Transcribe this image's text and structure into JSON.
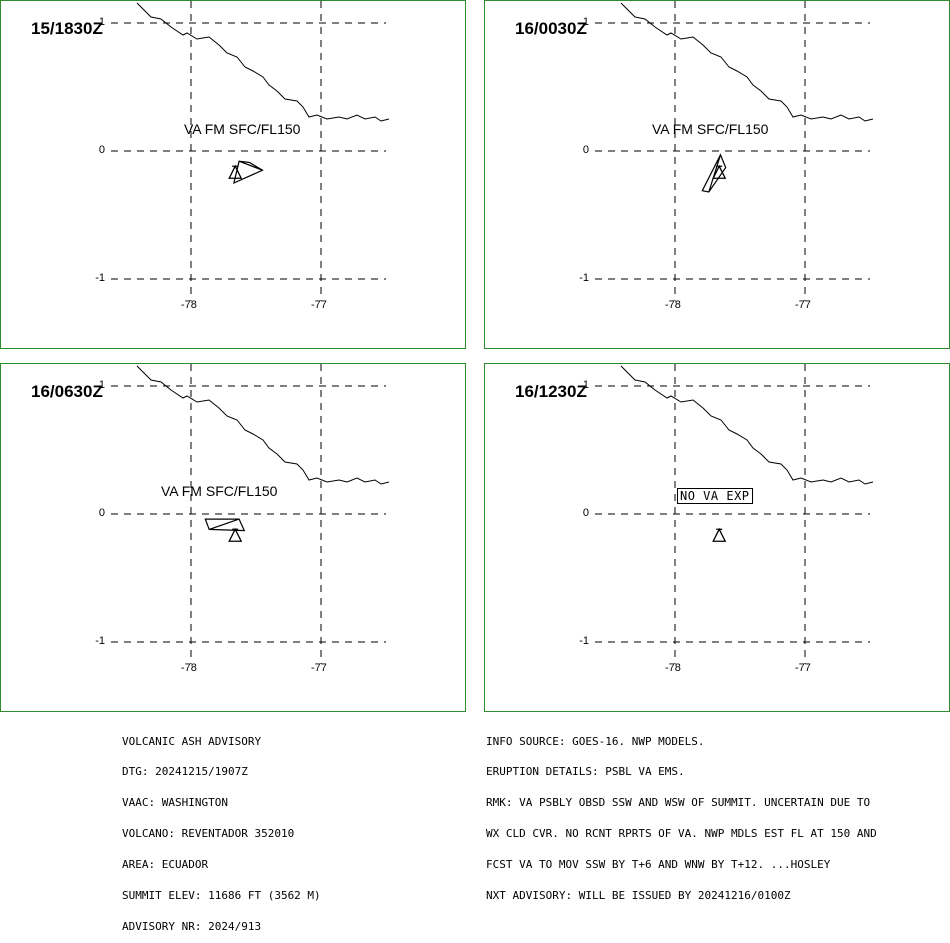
{
  "panels": [
    {
      "time": "15/1830Z",
      "label": "VA FM SFC/FL150",
      "label_boxed": false,
      "plume": [
        [
          -77.63,
          -0.08
        ],
        [
          -77.55,
          -0.09
        ],
        [
          -77.45,
          -0.15
        ],
        [
          -77.67,
          -0.25
        ]
      ]
    },
    {
      "time": "16/0030Z",
      "label": "VA FM SFC/FL150",
      "label_boxed": false,
      "plume": [
        [
          -77.65,
          -0.03
        ],
        [
          -77.61,
          -0.13
        ],
        [
          -77.74,
          -0.32
        ],
        [
          -77.79,
          -0.31
        ]
      ]
    },
    {
      "time": "16/0630Z",
      "label": "VA FM SFC/FL150",
      "label_boxed": false,
      "plume": [
        [
          -77.63,
          -0.04
        ],
        [
          -77.59,
          -0.13
        ],
        [
          -77.86,
          -0.12
        ],
        [
          -77.89,
          -0.04
        ]
      ]
    },
    {
      "time": "16/1230Z",
      "label": "NO VA EXP",
      "label_boxed": true,
      "plume": []
    }
  ],
  "axes": {
    "x_ticks": [
      "-78",
      "-77"
    ],
    "y_ticks": [
      "1",
      "0",
      "-1"
    ]
  },
  "volcano": {
    "name": "REVENTADOR",
    "lon": -77.66,
    "lat": -0.08
  },
  "advisory_left": [
    "VOLCANIC ASH ADVISORY",
    "DTG: 20241215/1907Z",
    "VAAC: WASHINGTON",
    "VOLCANO: REVENTADOR 352010",
    "AREA: ECUADOR",
    "SUMMIT ELEV: 11686 FT (3562 M)",
    "ADVISORY NR: 2024/913"
  ],
  "advisory_right": [
    "INFO SOURCE: GOES-16. NWP MODELS.",
    "ERUPTION DETAILS: PSBL VA EMS.",
    "RMK: VA PSBLY OBSD SSW AND WSW OF SUMMIT. UNCERTAIN DUE TO",
    "WX CLD CVR. NO RCNT RPRTS OF VA. NWP MDLS EST FL AT 150 AND",
    "FCST VA TO MOV SSW BY T+6 AND WNW BY T+12. ...HOSLEY",
    "NXT ADVISORY: WILL BE ISSUED BY 20241216/0100Z"
  ],
  "colors": {
    "panel_border": "#2e8b2e",
    "lines": "#000000"
  }
}
